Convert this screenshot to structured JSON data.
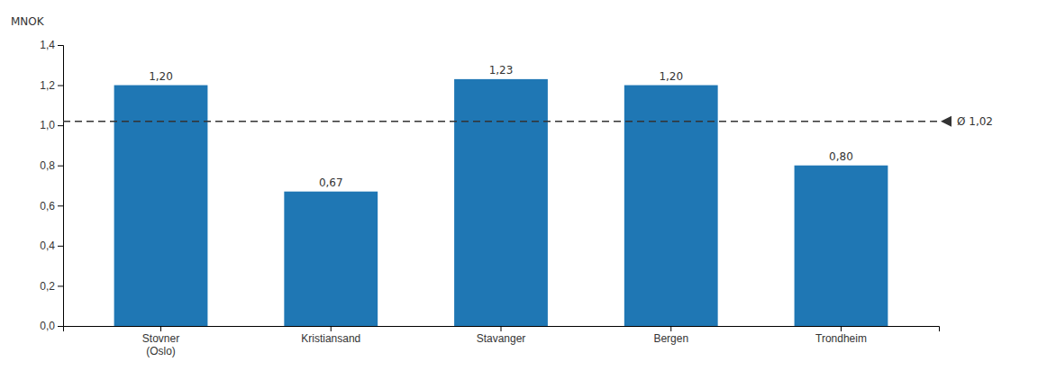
{
  "chart_data": {
    "type": "bar",
    "y_label": "MNOK",
    "categories": [
      "Stovner\n(Oslo)",
      "Kristiansand",
      "Stavanger",
      "Bergen",
      "Trondheim"
    ],
    "values": [
      1.2,
      0.67,
      1.23,
      1.2,
      0.8
    ],
    "value_labels": [
      "1,20",
      "0,67",
      "1,23",
      "1,20",
      "0,80"
    ],
    "data_labels": true,
    "ylim": [
      0,
      1.4
    ],
    "yticks": [
      {
        "value": 0.0,
        "label": "0,0"
      },
      {
        "value": 0.2,
        "label": "0,2"
      },
      {
        "value": 0.4,
        "label": "0,4"
      },
      {
        "value": 0.6,
        "label": "0,6"
      },
      {
        "value": 0.8,
        "label": "0,8"
      },
      {
        "value": 1.0,
        "label": "1,0"
      },
      {
        "value": 1.2,
        "label": "1,2"
      },
      {
        "value": 1.4,
        "label": "1,4"
      }
    ],
    "annotations": [
      {
        "text": "Ø 1,02",
        "y": 1.02
      }
    ],
    "grid": false
  }
}
